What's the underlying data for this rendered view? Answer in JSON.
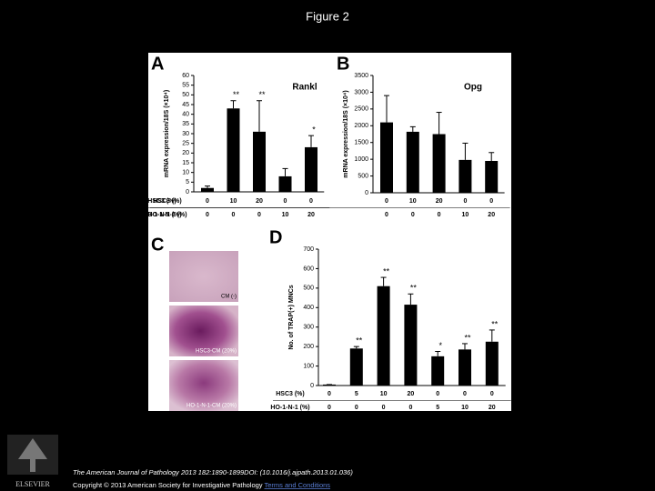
{
  "title": "Figure 2",
  "chart_data": [
    {
      "type": "bar",
      "panel": "A",
      "title": "Rankl",
      "ylabel": "mRNA expression/18S (×10⁴)",
      "ylim": [
        0,
        60
      ],
      "yticks": [
        0,
        5,
        10,
        15,
        20,
        25,
        30,
        35,
        40,
        45,
        50,
        55,
        60
      ],
      "groups": [
        {
          "name": "HSC3 (%)",
          "labels": [
            "0",
            "10",
            "20",
            "0",
            "0"
          ]
        },
        {
          "name": "HO-1-N-1 (%)",
          "labels": [
            "0",
            "0",
            "0",
            "10",
            "20"
          ]
        }
      ],
      "values": [
        2,
        43,
        31,
        8,
        23
      ],
      "errors": [
        1,
        4,
        16,
        4,
        6
      ],
      "annotations": [
        null,
        "**",
        "**",
        null,
        "*"
      ],
      "color": "#000000"
    },
    {
      "type": "bar",
      "panel": "B",
      "title": "Opg",
      "ylabel": "mRNA expression/18S (×10⁴)",
      "ylim": [
        0,
        3500
      ],
      "yticks": [
        0,
        500,
        1000,
        1500,
        2000,
        2500,
        3000,
        3500
      ],
      "groups": [
        {
          "name": "HSC3 (%)",
          "labels": [
            "0",
            "10",
            "20",
            "0",
            "0"
          ]
        },
        {
          "name": "HO-1-N-1 (%)",
          "labels": [
            "0",
            "0",
            "0",
            "10",
            "20"
          ]
        }
      ],
      "values": [
        2100,
        1820,
        1750,
        980,
        950
      ],
      "errors": [
        800,
        150,
        650,
        500,
        250
      ],
      "annotations": [
        null,
        null,
        null,
        null,
        null
      ],
      "color": "#000000"
    },
    {
      "type": "bar",
      "panel": "D",
      "ylabel": "No. of TRAP(+) MNCs",
      "ylim": [
        0,
        700
      ],
      "yticks": [
        0,
        100,
        200,
        300,
        400,
        500,
        600,
        700
      ],
      "groups": [
        {
          "name": "HSC3 (%)",
          "labels": [
            "0",
            "5",
            "10",
            "20",
            "0",
            "0",
            "0"
          ]
        },
        {
          "name": "HO-1-N-1 (%)",
          "labels": [
            "0",
            "0",
            "0",
            "0",
            "5",
            "10",
            "20"
          ]
        }
      ],
      "values": [
        5,
        190,
        510,
        415,
        150,
        185,
        225
      ],
      "errors": [
        0,
        10,
        45,
        55,
        25,
        30,
        60
      ],
      "annotations": [
        null,
        "**",
        "**",
        "**",
        "*",
        "**",
        "**"
      ],
      "color": "#000000"
    }
  ],
  "panel_c": {
    "letter": "C",
    "images": [
      "CM (-)",
      "HSC3-CM (20%)",
      "HO-1-N-1-CM (20%)"
    ]
  },
  "footer": {
    "journal": "The American Journal of Pathology 2013 182:1890-1899DOI: (10.1016/j.ajpath.2013.01.036)",
    "copyright": "Copyright © 2013 American Society for Investigative Pathology",
    "link": "Terms and Conditions",
    "publisher": "ELSEVIER"
  }
}
